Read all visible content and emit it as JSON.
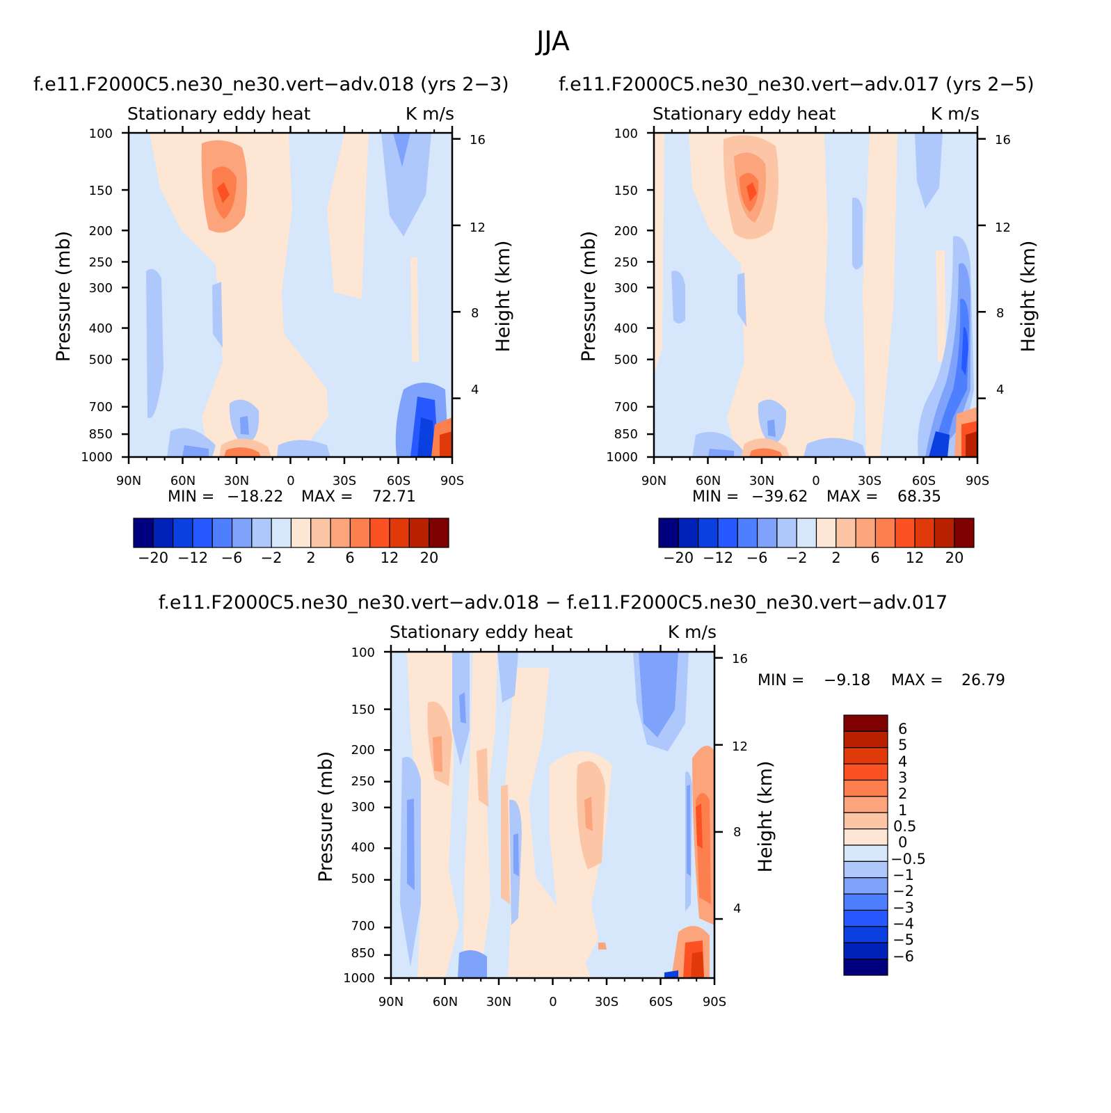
{
  "figure_title": "JJA",
  "chart_data": [
    {
      "type": "heatmap",
      "panel": "top-left",
      "case_title": "f.e11.F2000C5.ne30_ne30.vert−adv.018 (yrs 2−3)",
      "variable_label": "Stationary eddy heat",
      "units_label": "K m/s",
      "ylabel": "Pressure (mb)",
      "ylabel_right": "Height (km)",
      "x_tick_labels": [
        "90N",
        "60N",
        "30N",
        "0",
        "30S",
        "60S",
        "90S"
      ],
      "y_tick_labels": [
        "100",
        "150",
        "200",
        "250",
        "300",
        "400",
        "500",
        "700",
        "850",
        "1000"
      ],
      "y_right_tick_labels": [
        "16",
        "12",
        "8",
        "4"
      ],
      "min_label": "MIN =",
      "min_value": "−18.22",
      "max_label": "MAX =",
      "max_value": "72.71",
      "colorbar_labels": [
        "−20",
        "−12",
        "−6",
        "−2",
        "2",
        "6",
        "12",
        "20"
      ],
      "colorbar_orientation": "horizontal"
    },
    {
      "type": "heatmap",
      "panel": "top-right",
      "case_title": "f.e11.F2000C5.ne30_ne30.vert−adv.017 (yrs 2−5)",
      "variable_label": "Stationary eddy heat",
      "units_label": "K m/s",
      "ylabel": "Pressure (mb)",
      "ylabel_right": "Height (km)",
      "x_tick_labels": [
        "90N",
        "60N",
        "30N",
        "0",
        "30S",
        "60S",
        "90S"
      ],
      "y_tick_labels": [
        "100",
        "150",
        "200",
        "250",
        "300",
        "400",
        "500",
        "700",
        "850",
        "1000"
      ],
      "y_right_tick_labels": [
        "16",
        "12",
        "8",
        "4"
      ],
      "min_label": "MIN =",
      "min_value": "−39.62",
      "max_label": "MAX =",
      "max_value": "68.35",
      "colorbar_labels": [
        "−20",
        "−12",
        "−6",
        "−2",
        "2",
        "6",
        "12",
        "20"
      ],
      "colorbar_orientation": "horizontal"
    },
    {
      "type": "heatmap",
      "panel": "bottom",
      "case_title": "f.e11.F2000C5.ne30_ne30.vert−adv.018 − f.e11.F2000C5.ne30_ne30.vert−adv.017",
      "variable_label": "Stationary eddy heat",
      "units_label": "K m/s",
      "ylabel": "Pressure (mb)",
      "ylabel_right": "Height (km)",
      "x_tick_labels": [
        "90N",
        "60N",
        "30N",
        "0",
        "30S",
        "60S",
        "90S"
      ],
      "y_tick_labels": [
        "100",
        "150",
        "200",
        "250",
        "300",
        "400",
        "500",
        "700",
        "850",
        "1000"
      ],
      "y_right_tick_labels": [
        "16",
        "12",
        "8",
        "4"
      ],
      "min_label": "MIN =",
      "min_value": "−9.18",
      "max_label": "MAX =",
      "max_value": "26.79",
      "colorbar_labels": [
        "6",
        "5",
        "4",
        "3",
        "2",
        "1",
        "0.5",
        "0",
        "−0.5",
        "−1",
        "−2",
        "−3",
        "−4",
        "−5",
        "−6"
      ],
      "colorbar_orientation": "vertical"
    }
  ],
  "colors": {
    "palette": [
      "#00007f",
      "#0022b8",
      "#0a3fe0",
      "#2659ff",
      "#4d7fff",
      "#7fa3fa",
      "#afc8fb",
      "#d6e6fb",
      "#fde6d4",
      "#fcc5a6",
      "#fca47c",
      "#fd7f4d",
      "#fc5223",
      "#e03a0a",
      "#b82200",
      "#7f0000"
    ]
  }
}
